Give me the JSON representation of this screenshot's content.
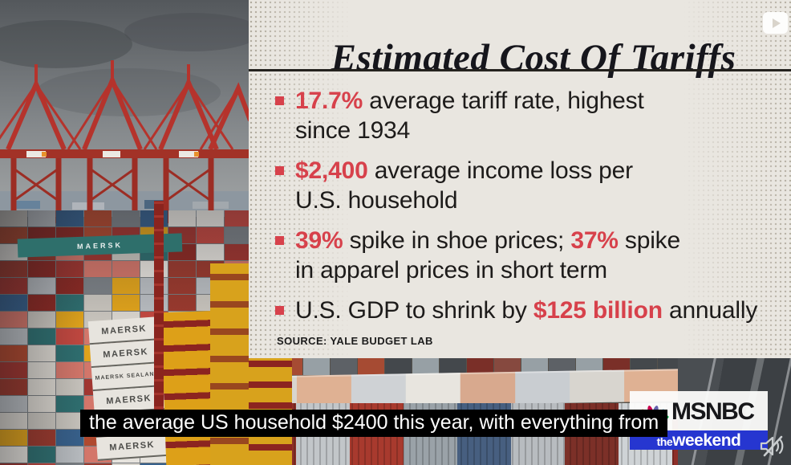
{
  "panel": {
    "title": "Estimated Cost Of Tariffs",
    "bullets": [
      {
        "segments": [
          {
            "text": "17.7%",
            "style": "accent"
          },
          {
            "text": " average tariff rate, highest\nsince 1934",
            "style": "normal"
          }
        ]
      },
      {
        "segments": [
          {
            "text": "$2,400",
            "style": "accent"
          },
          {
            "text": " average income loss per\nU.S. household",
            "style": "normal"
          }
        ]
      },
      {
        "segments": [
          {
            "text": "39%",
            "style": "accent"
          },
          {
            "text": " spike in shoe prices; ",
            "style": "normal"
          },
          {
            "text": "37%",
            "style": "accent"
          },
          {
            "text": " spike\nin apparel prices in short term",
            "style": "normal"
          }
        ]
      },
      {
        "segments": [
          {
            "text": "U.S. GDP to shrink by ",
            "style": "normal"
          },
          {
            "text": "$125 billion",
            "style": "accent"
          },
          {
            "text": " annually",
            "style": "normal"
          }
        ]
      }
    ],
    "source": "SOURCE: YALE BUDGET LAB"
  },
  "caption": {
    "text": "the average US household $2400 this year, with everything from"
  },
  "branding": {
    "network": "MSNBC",
    "show_prefix": "the",
    "show_name": "weekend"
  },
  "photo": {
    "container_labels": [
      "MAERSK",
      "MAERSK",
      "MAERSK",
      "MAERSK SEALAND",
      "MAERSK",
      "MAERSK"
    ]
  },
  "icons": {
    "play": "play-icon",
    "mute": "muted-speaker-icon",
    "peacock": "nbc-peacock-icon",
    "bullet": "square-bullet-icon"
  },
  "colors": {
    "accent_red": "#d7414b",
    "panel_bg": "#e9e6e0",
    "weekend_blue": "#2636d0",
    "caption_bg": "#000000",
    "caption_text": "#ffffff"
  }
}
